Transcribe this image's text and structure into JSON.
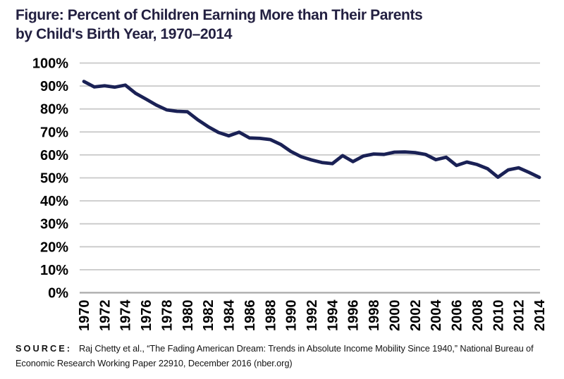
{
  "title": {
    "line1": "Figure: Percent of Children Earning More than Their Parents",
    "line2": "by Child's Birth Year, 1970–2014"
  },
  "source": {
    "label": "SOURCE:",
    "text": "Raj Chetty et al., “The Fading American Dream: Trends in Absolute Income Mobility Since 1940,” National Bureau of Economic Research Working Paper 22910, December 2016 (nber.org)"
  },
  "chart_data": {
    "type": "line",
    "title": "Figure: Percent of Children Earning More than Their Parents by Child's Birth Year, 1970–2014",
    "xlabel": "",
    "ylabel": "",
    "xlim": [
      1970,
      2014
    ],
    "ylim": [
      0,
      100
    ],
    "grid": "horizontal",
    "legend": "none",
    "line_color": "#1a2155",
    "grid_color": "#c9c9c9",
    "zero_line_color": "#a9a9a9",
    "x": [
      1970,
      1971,
      1972,
      1973,
      1974,
      1975,
      1976,
      1977,
      1978,
      1979,
      1980,
      1981,
      1982,
      1983,
      1984,
      1985,
      1986,
      1987,
      1988,
      1989,
      1990,
      1991,
      1992,
      1993,
      1994,
      1995,
      1996,
      1997,
      1998,
      1999,
      2000,
      2001,
      2002,
      2003,
      2004,
      2005,
      2006,
      2007,
      2008,
      2009,
      2010,
      2011,
      2012,
      2013,
      2014
    ],
    "values": [
      92.0,
      89.6,
      90.1,
      89.5,
      90.4,
      86.8,
      84.3,
      81.7,
      79.6,
      79.0,
      78.8,
      75.3,
      72.3,
      69.8,
      68.3,
      69.9,
      67.4,
      67.2,
      66.7,
      64.6,
      61.5,
      59.2,
      57.8,
      56.7,
      56.2,
      59.7,
      57.1,
      59.5,
      60.4,
      60.2,
      61.2,
      61.3,
      61.0,
      60.2,
      57.9,
      59.0,
      55.4,
      56.9,
      55.8,
      54.0,
      50.3,
      53.5,
      54.4,
      52.4,
      50.2
    ],
    "x_ticks": [
      {
        "label": "1970",
        "value": 1970
      },
      {
        "label": "1972",
        "value": 1972
      },
      {
        "label": "1974",
        "value": 1974
      },
      {
        "label": "1976",
        "value": 1976
      },
      {
        "label": "1978",
        "value": 1978
      },
      {
        "label": "1980",
        "value": 1980
      },
      {
        "label": "1982",
        "value": 1982
      },
      {
        "label": "1984",
        "value": 1984
      },
      {
        "label": "1986",
        "value": 1986
      },
      {
        "label": "1988",
        "value": 1988
      },
      {
        "label": "1990",
        "value": 1990
      },
      {
        "label": "1992",
        "value": 1992
      },
      {
        "label": "1994",
        "value": 1994
      },
      {
        "label": "1996",
        "value": 1996
      },
      {
        "label": "1998",
        "value": 1998
      },
      {
        "label": "2000",
        "value": 2000
      },
      {
        "label": "2002",
        "value": 2002
      },
      {
        "label": "2004",
        "value": 2004
      },
      {
        "label": "2006",
        "value": 2006
      },
      {
        "label": "2008",
        "value": 2008
      },
      {
        "label": "2010",
        "value": 2010
      },
      {
        "label": "2012",
        "value": 2012
      },
      {
        "label": "2014",
        "value": 2014
      }
    ],
    "y_ticks": [
      {
        "label": "100%",
        "value": 100
      },
      {
        "label": "90%",
        "value": 90
      },
      {
        "label": "80%",
        "value": 80
      },
      {
        "label": "70%",
        "value": 70
      },
      {
        "label": "60%",
        "value": 60
      },
      {
        "label": "50%",
        "value": 50
      },
      {
        "label": "40%",
        "value": 40
      },
      {
        "label": "30%",
        "value": 30
      },
      {
        "label": "20%",
        "value": 20
      },
      {
        "label": "10%",
        "value": 10
      },
      {
        "label": "0%",
        "value": 0
      }
    ]
  }
}
